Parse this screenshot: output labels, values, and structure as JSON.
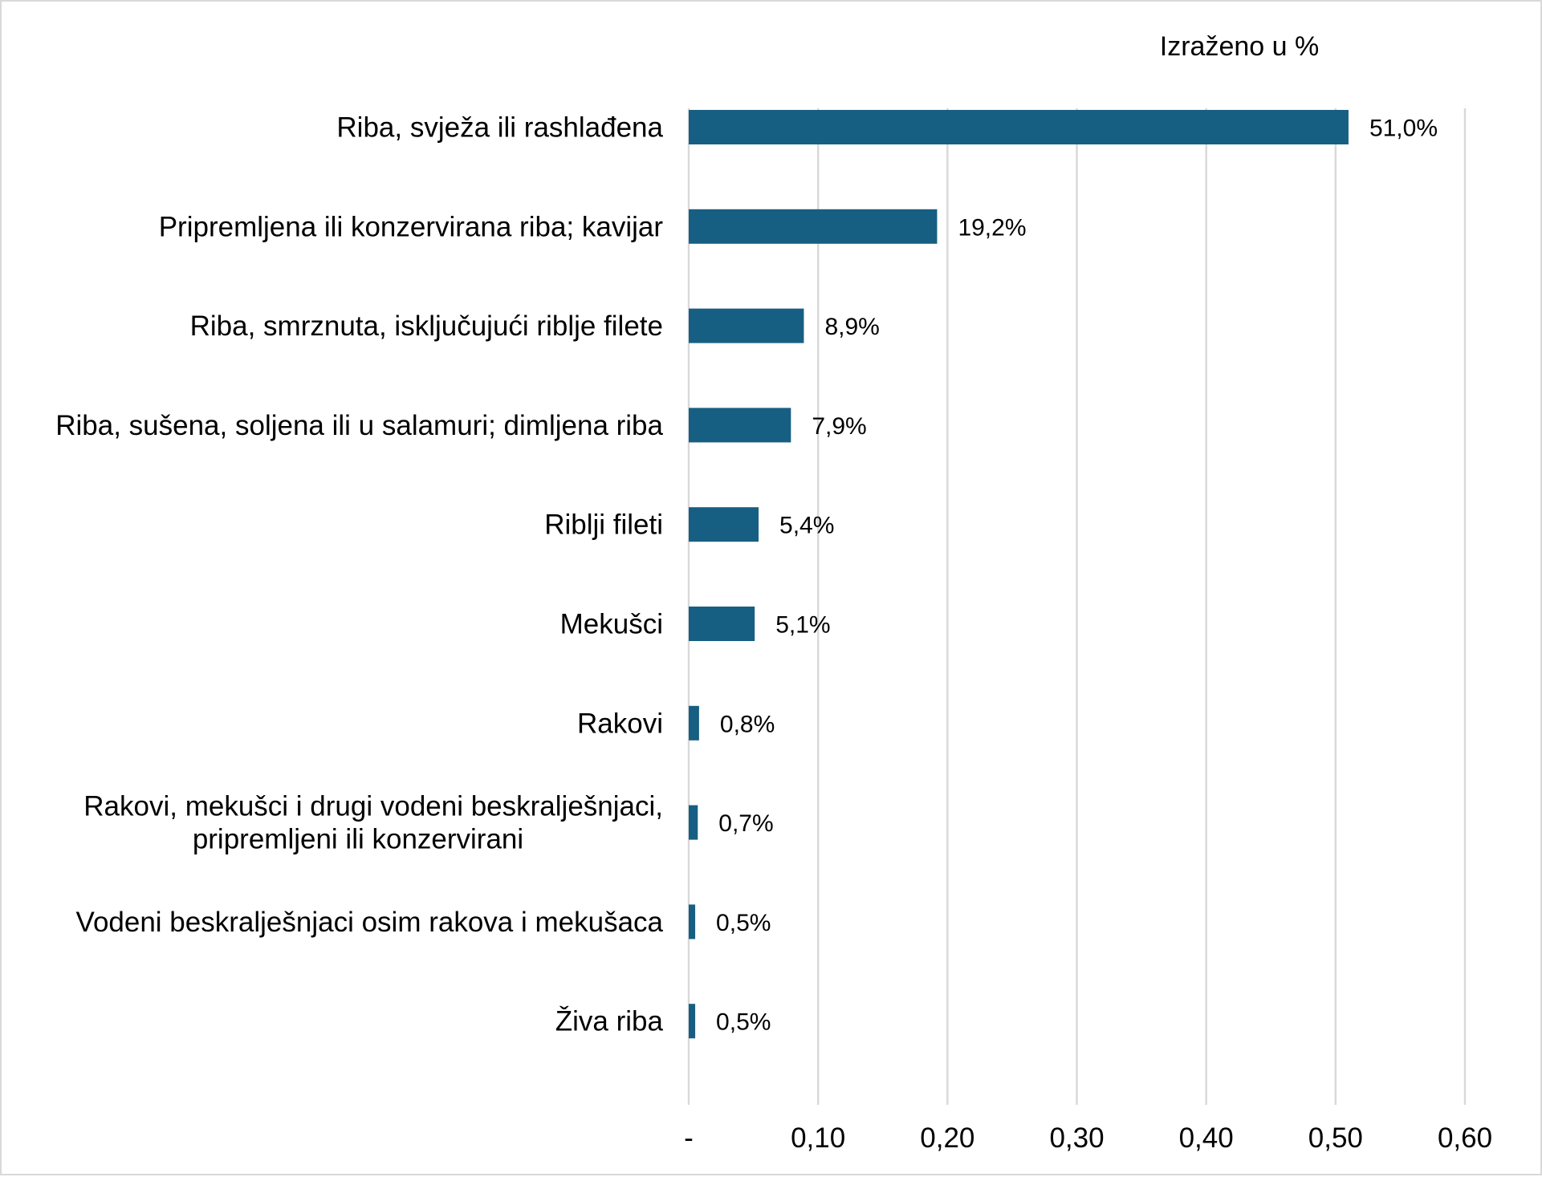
{
  "chart_data": {
    "type": "bar",
    "orientation": "horizontal",
    "unit_note": "Izraženo u %",
    "categories": [
      [
        "Riba, svježa ili rashlađena"
      ],
      [
        "Pripremljena ili konzervirana riba; kavijar"
      ],
      [
        "Riba, smrznuta, isključujući riblje filete"
      ],
      [
        "Riba, sušena, soljena ili u salamuri; dimljena riba"
      ],
      [
        "Riblji fileti"
      ],
      [
        "Mekušci"
      ],
      [
        "Rakovi"
      ],
      [
        "Rakovi, mekušci i drugi vodeni beskralješnjaci,",
        "pripremljeni ili konzervirani"
      ],
      [
        "Vodeni beskralješnjaci osim rakova i mekušaca"
      ],
      [
        "Živa riba"
      ]
    ],
    "values": [
      0.51,
      0.192,
      0.089,
      0.079,
      0.054,
      0.051,
      0.008,
      0.007,
      0.005,
      0.005
    ],
    "data_labels": [
      "51,0%",
      "19,2%",
      "8,9%",
      "7,9%",
      "5,4%",
      "5,1%",
      "0,8%",
      "0,7%",
      "0,5%",
      "0,5%"
    ],
    "x_ticks": [
      0,
      0.1,
      0.2,
      0.3,
      0.4,
      0.5,
      0.6
    ],
    "x_tick_labels": [
      "-",
      "0,10",
      "0,20",
      "0,30",
      "0,40",
      "0,50",
      "0,60"
    ],
    "xlim": [
      0,
      0.6
    ],
    "grid": true,
    "legend": "none",
    "colors": {
      "bar": "#175f82",
      "grid": "#d9d9d9"
    }
  }
}
